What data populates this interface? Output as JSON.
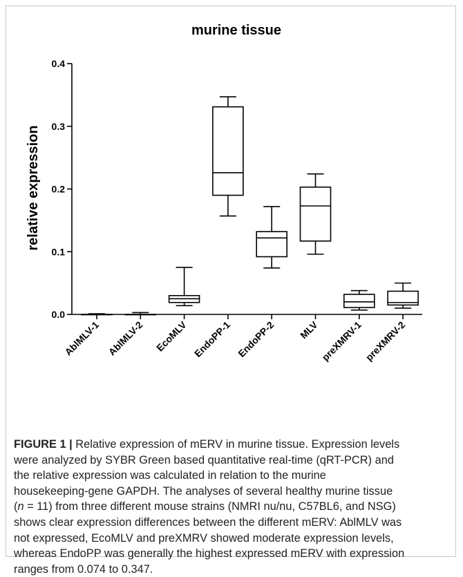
{
  "chart_data": {
    "type": "box",
    "title": "murine tissue",
    "xlabel": "",
    "ylabel": "relative expression",
    "ylim": [
      0,
      0.4
    ],
    "yticks": [
      "0.0",
      "0.1",
      "0.2",
      "0.3",
      "0.4"
    ],
    "categories": [
      "AblMLV-1",
      "AblMLV-2",
      "EcoMLV",
      "EndoPP-1",
      "EndoPP-2",
      "MLV",
      "preXMRV-1",
      "preXMRV-2"
    ],
    "boxes": [
      {
        "min": 0.0,
        "q1": 0.0,
        "median": 0.0,
        "q3": 0.0,
        "max": 0.001
      },
      {
        "min": 0.0,
        "q1": 0.0,
        "median": 0.0,
        "q3": 0.0,
        "max": 0.003
      },
      {
        "min": 0.014,
        "q1": 0.019,
        "median": 0.025,
        "q3": 0.03,
        "max": 0.075
      },
      {
        "min": 0.157,
        "q1": 0.19,
        "median": 0.226,
        "q3": 0.331,
        "max": 0.347
      },
      {
        "min": 0.074,
        "q1": 0.092,
        "median": 0.122,
        "q3": 0.132,
        "max": 0.172
      },
      {
        "min": 0.096,
        "q1": 0.117,
        "median": 0.173,
        "q3": 0.203,
        "max": 0.224
      },
      {
        "min": 0.007,
        "q1": 0.011,
        "median": 0.02,
        "q3": 0.032,
        "max": 0.038
      },
      {
        "min": 0.01,
        "q1": 0.015,
        "median": 0.019,
        "q3": 0.037,
        "max": 0.05
      }
    ],
    "grid": false,
    "legend": "none",
    "color": "#000000"
  },
  "caption": {
    "label": "FIGURE 1 |",
    "line1": " Relative expression of mERV in murine tissue. Expression levels",
    "line2": "were analyzed by SYBR Green based quantitative real-time (qRT-PCR) and",
    "line3": "the relative expression was calculated in relation to the murine",
    "line4": "housekeeping-gene GAPDH. The analyses of several healthy murine tissue",
    "line5_pre": "(",
    "line5_n": "n",
    "line5_post": " = 11) from three different mouse strains (NMRI nu/nu, C57BL6, and NSG)",
    "line6": "shows clear expression differences between the different mERV: AblMLV was",
    "line7": "not expressed, EcoMLV and preXMRV showed moderate expression levels,",
    "line8": "whereas EndoPP was generally the highest expressed mERV with expression",
    "line9": "ranges from 0.074 to 0.347."
  }
}
